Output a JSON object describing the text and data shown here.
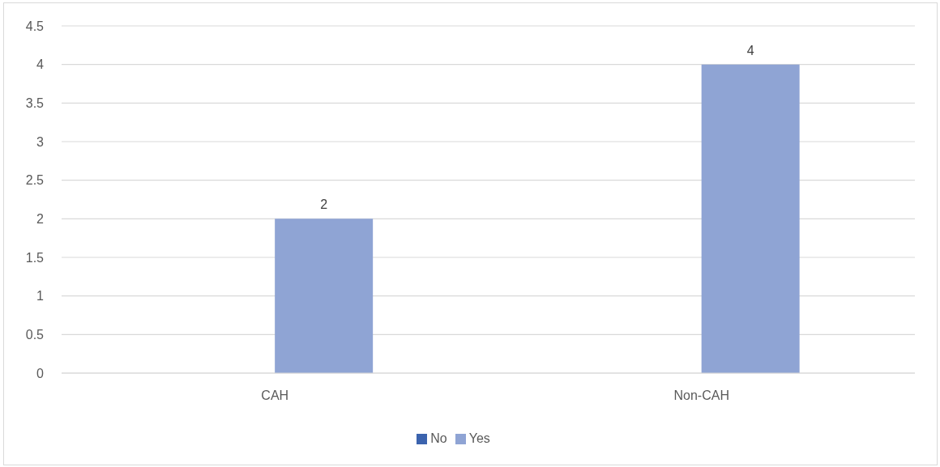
{
  "chart_data": {
    "type": "bar",
    "categories": [
      "CAH",
      "Non-CAH"
    ],
    "series": [
      {
        "name": "No",
        "color": "#3b63ae",
        "values": [
          null,
          null
        ]
      },
      {
        "name": "Yes",
        "color": "#8fa4d4",
        "values": [
          2,
          4
        ]
      }
    ],
    "ylim": [
      0,
      4.5
    ],
    "yticks": [
      0,
      0.5,
      1,
      1.5,
      2,
      2.5,
      3,
      3.5,
      4,
      4.5
    ],
    "grid": "y",
    "legend": "bottom",
    "data_labels": true
  }
}
